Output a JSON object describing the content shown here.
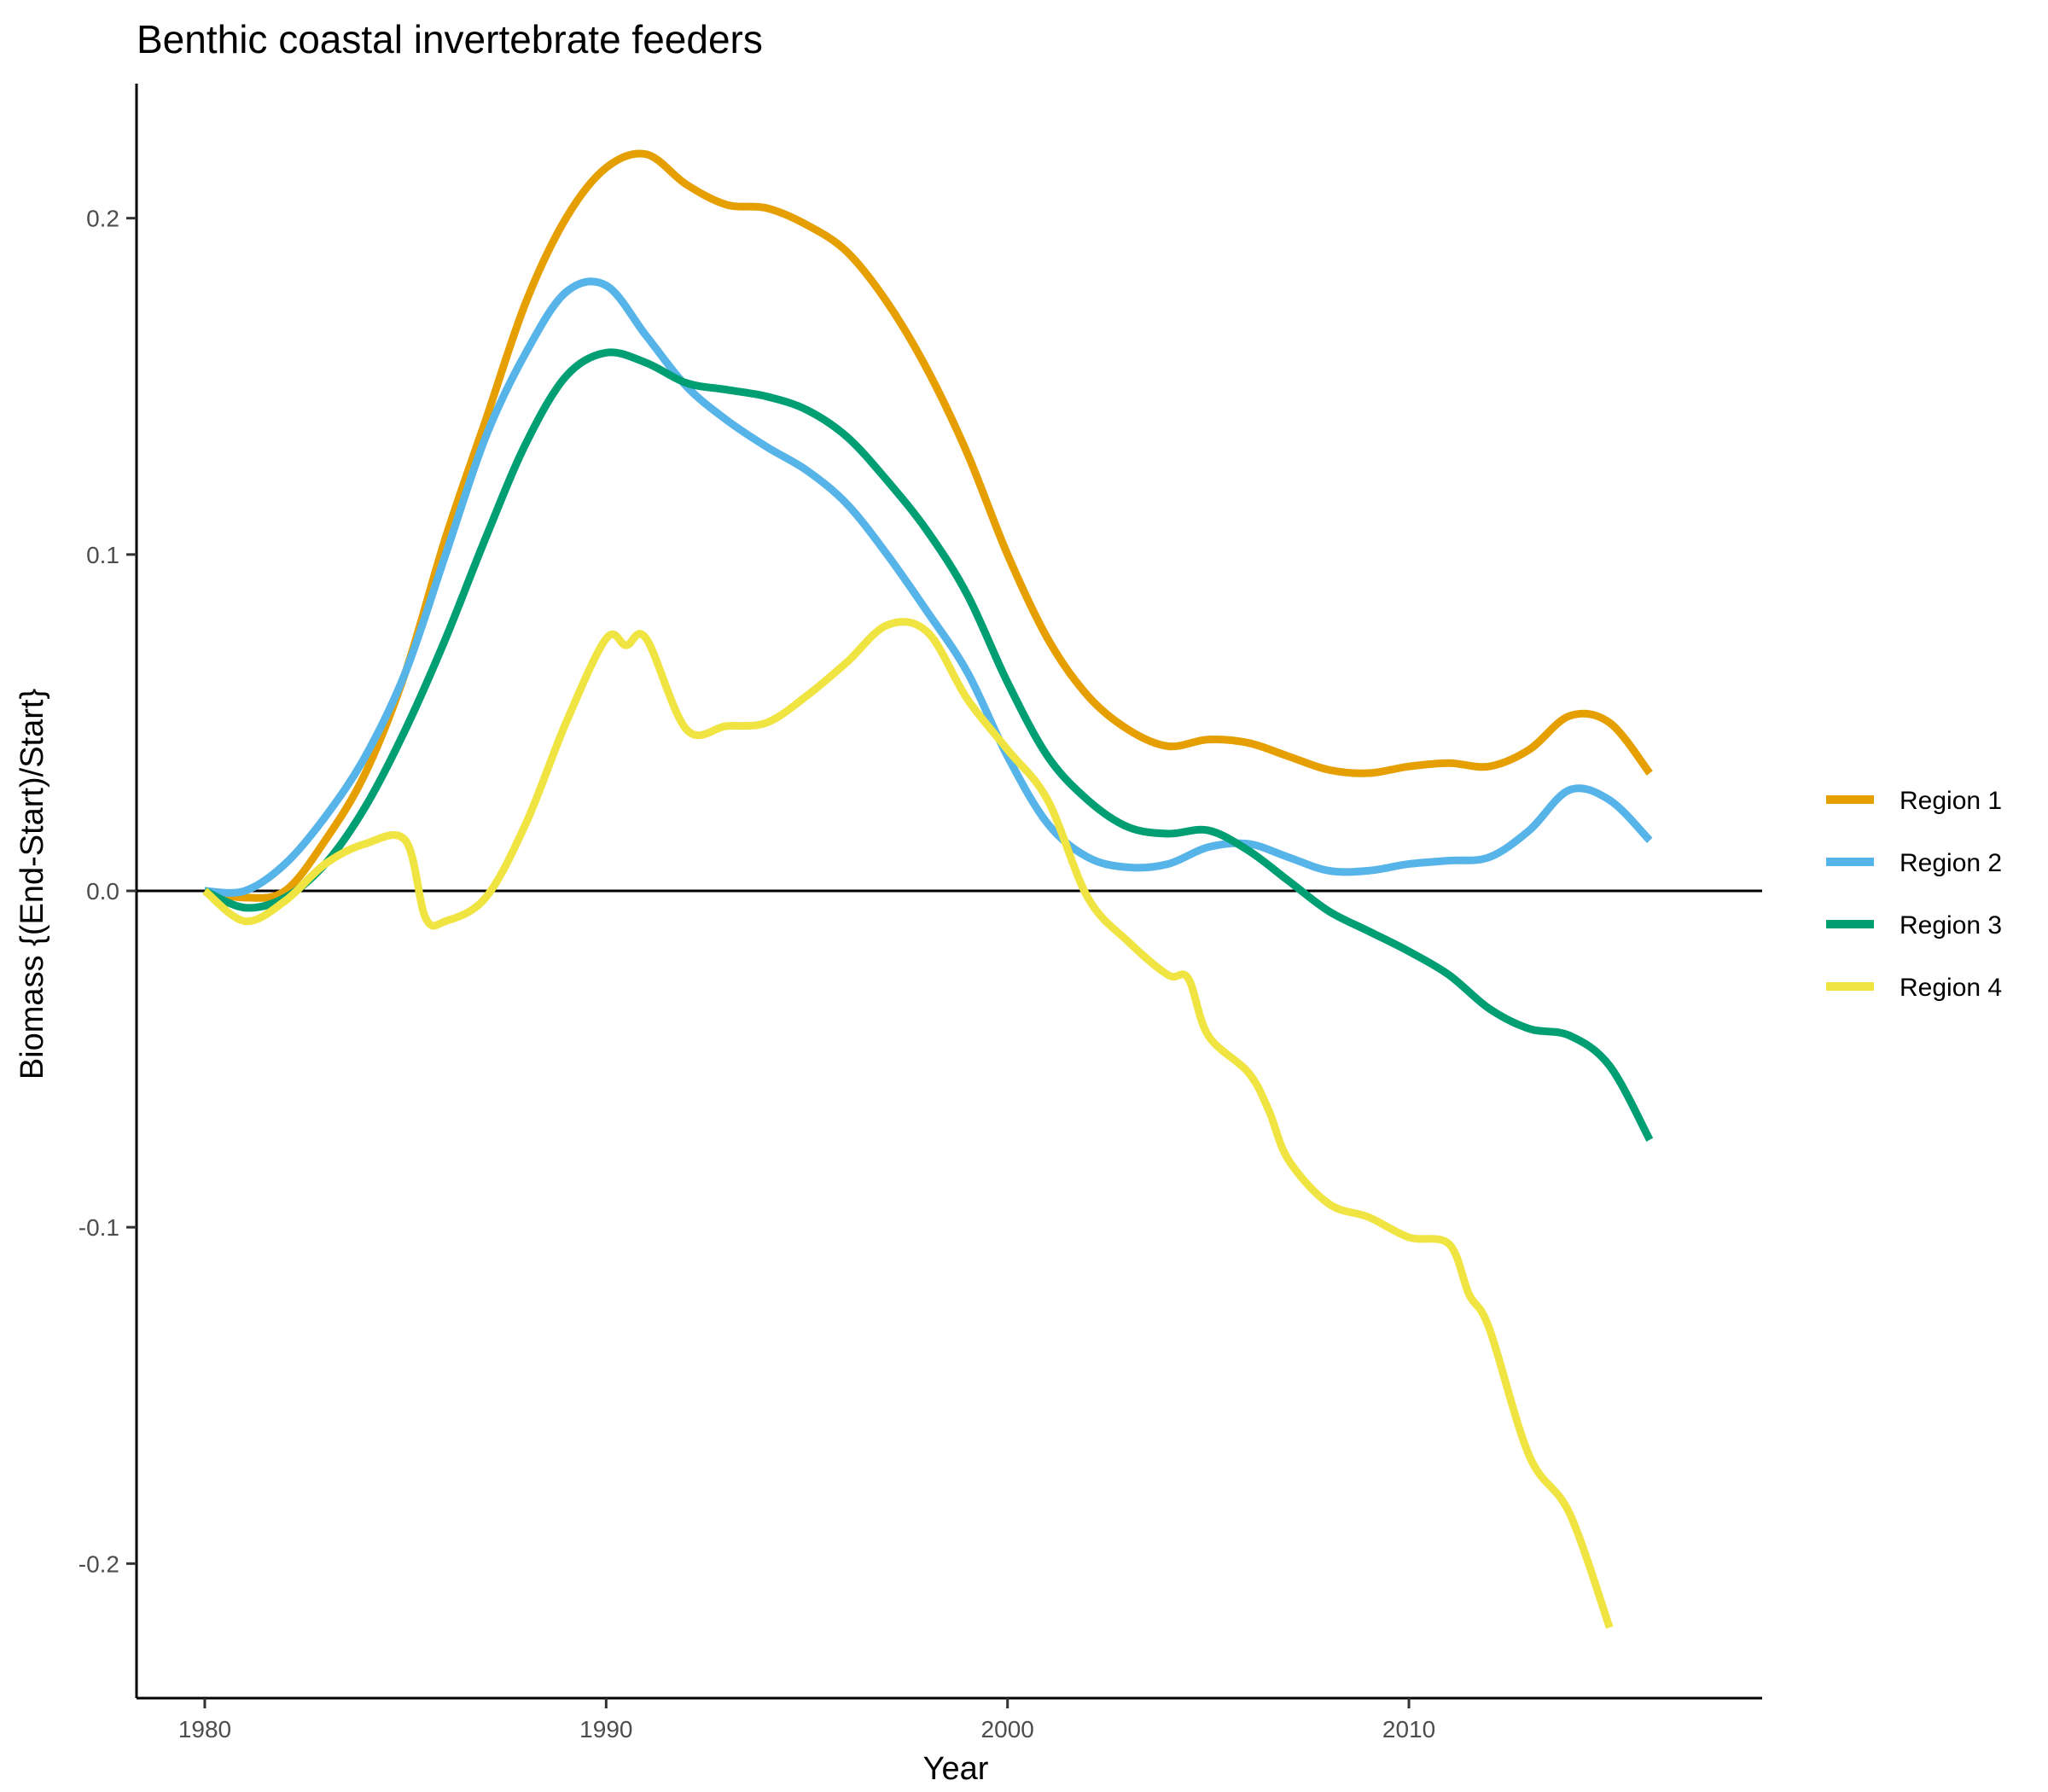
{
  "chart_data": {
    "type": "line",
    "title": "Benthic coastal invertebrate feeders",
    "xlabel": "Year",
    "ylabel": "Biomass {(End-Start)/Start}",
    "xlim": [
      1978.3,
      2018.8
    ],
    "ylim": [
      -0.24,
      0.24
    ],
    "xticks": [
      1980,
      1990,
      2000,
      2010
    ],
    "yticks": [
      -0.2,
      -0.1,
      0.0,
      0.1,
      0.2
    ],
    "ytick_labels": [
      "-0.2",
      "-0.1",
      "0.0",
      "0.1",
      "0.2"
    ],
    "hline": 0,
    "grid": false,
    "legend_position": "right",
    "series": [
      {
        "name": "Region 1",
        "color": "#E69F00",
        "points": [
          [
            1980,
            0
          ],
          [
            1981,
            -0.002
          ],
          [
            1982,
            0.0
          ],
          [
            1983,
            0.015
          ],
          [
            1984,
            0.035
          ],
          [
            1985,
            0.065
          ],
          [
            1986,
            0.105
          ],
          [
            1987,
            0.14
          ],
          [
            1988,
            0.175
          ],
          [
            1989,
            0.2
          ],
          [
            1990,
            0.215
          ],
          [
            1991,
            0.219
          ],
          [
            1992,
            0.21
          ],
          [
            1993,
            0.204
          ],
          [
            1994,
            0.203
          ],
          [
            1995,
            0.198
          ],
          [
            1996,
            0.19
          ],
          [
            1997,
            0.175
          ],
          [
            1998,
            0.155
          ],
          [
            1999,
            0.13
          ],
          [
            2000,
            0.1
          ],
          [
            2001,
            0.075
          ],
          [
            2002,
            0.058
          ],
          [
            2003,
            0.048
          ],
          [
            2004,
            0.043
          ],
          [
            2005,
            0.045
          ],
          [
            2006,
            0.044
          ],
          [
            2007,
            0.04
          ],
          [
            2008,
            0.036
          ],
          [
            2009,
            0.035
          ],
          [
            2010,
            0.037
          ],
          [
            2011,
            0.038
          ],
          [
            2012,
            0.037
          ],
          [
            2013,
            0.042
          ],
          [
            2014,
            0.052
          ],
          [
            2015,
            0.05
          ],
          [
            2016,
            0.035
          ]
        ]
      },
      {
        "name": "Region 2",
        "color": "#56B4E9",
        "points": [
          [
            1980,
            0
          ],
          [
            1981,
            0.0
          ],
          [
            1982,
            0.008
          ],
          [
            1983,
            0.022
          ],
          [
            1984,
            0.04
          ],
          [
            1985,
            0.065
          ],
          [
            1986,
            0.1
          ],
          [
            1987,
            0.135
          ],
          [
            1988,
            0.16
          ],
          [
            1989,
            0.178
          ],
          [
            1990,
            0.18
          ],
          [
            1991,
            0.165
          ],
          [
            1992,
            0.15
          ],
          [
            1993,
            0.14
          ],
          [
            1994,
            0.132
          ],
          [
            1995,
            0.125
          ],
          [
            1996,
            0.115
          ],
          [
            1997,
            0.1
          ],
          [
            1998,
            0.083
          ],
          [
            1999,
            0.065
          ],
          [
            2000,
            0.04
          ],
          [
            2001,
            0.02
          ],
          [
            2002,
            0.01
          ],
          [
            2003,
            0.007
          ],
          [
            2004,
            0.008
          ],
          [
            2005,
            0.013
          ],
          [
            2006,
            0.014
          ],
          [
            2007,
            0.01
          ],
          [
            2008,
            0.006
          ],
          [
            2009,
            0.006
          ],
          [
            2010,
            0.008
          ],
          [
            2011,
            0.009
          ],
          [
            2012,
            0.01
          ],
          [
            2013,
            0.018
          ],
          [
            2014,
            0.03
          ],
          [
            2015,
            0.027
          ],
          [
            2016,
            0.015
          ]
        ]
      },
      {
        "name": "Region 3",
        "color": "#009E73",
        "points": [
          [
            1980,
            0
          ],
          [
            1981,
            -0.005
          ],
          [
            1982,
            -0.002
          ],
          [
            1983,
            0.008
          ],
          [
            1984,
            0.025
          ],
          [
            1985,
            0.048
          ],
          [
            1986,
            0.075
          ],
          [
            1987,
            0.105
          ],
          [
            1988,
            0.133
          ],
          [
            1989,
            0.153
          ],
          [
            1990,
            0.16
          ],
          [
            1991,
            0.157
          ],
          [
            1992,
            0.151
          ],
          [
            1993,
            0.149
          ],
          [
            1994,
            0.147
          ],
          [
            1995,
            0.143
          ],
          [
            1996,
            0.135
          ],
          [
            1997,
            0.122
          ],
          [
            1998,
            0.107
          ],
          [
            1999,
            0.088
          ],
          [
            2000,
            0.062
          ],
          [
            2001,
            0.04
          ],
          [
            2002,
            0.027
          ],
          [
            2003,
            0.019
          ],
          [
            2004,
            0.017
          ],
          [
            2005,
            0.018
          ],
          [
            2006,
            0.012
          ],
          [
            2007,
            0.003
          ],
          [
            2008,
            -0.006
          ],
          [
            2009,
            -0.012
          ],
          [
            2010,
            -0.018
          ],
          [
            2011,
            -0.025
          ],
          [
            2012,
            -0.035
          ],
          [
            2013,
            -0.041
          ],
          [
            2014,
            -0.043
          ],
          [
            2015,
            -0.052
          ],
          [
            2016,
            -0.074
          ]
        ]
      },
      {
        "name": "Region 4",
        "color": "#F0E442",
        "points": [
          [
            1980,
            0
          ],
          [
            1981,
            -0.009
          ],
          [
            1982,
            -0.003
          ],
          [
            1983,
            0.008
          ],
          [
            1984,
            0.014
          ],
          [
            1985,
            0.015
          ],
          [
            1985.5,
            -0.008
          ],
          [
            1986,
            -0.009
          ],
          [
            1987,
            -0.002
          ],
          [
            1988,
            0.02
          ],
          [
            1989,
            0.05
          ],
          [
            1990,
            0.075
          ],
          [
            1990.5,
            0.073
          ],
          [
            1991,
            0.075
          ],
          [
            1992,
            0.048
          ],
          [
            1993,
            0.049
          ],
          [
            1994,
            0.05
          ],
          [
            1995,
            0.058
          ],
          [
            1996,
            0.068
          ],
          [
            1997,
            0.079
          ],
          [
            1998,
            0.077
          ],
          [
            1999,
            0.057
          ],
          [
            2000,
            0.042
          ],
          [
            2001,
            0.027
          ],
          [
            2002,
            -0.002
          ],
          [
            2003,
            -0.015
          ],
          [
            2004,
            -0.025
          ],
          [
            2004.5,
            -0.026
          ],
          [
            2005,
            -0.043
          ],
          [
            2006,
            -0.054
          ],
          [
            2006.5,
            -0.065
          ],
          [
            2007,
            -0.08
          ],
          [
            2008,
            -0.093
          ],
          [
            2009,
            -0.097
          ],
          [
            2010,
            -0.103
          ],
          [
            2011,
            -0.105
          ],
          [
            2011.5,
            -0.12
          ],
          [
            2012,
            -0.13
          ],
          [
            2013,
            -0.168
          ],
          [
            2014,
            -0.185
          ],
          [
            2015,
            -0.219
          ]
        ]
      }
    ]
  }
}
